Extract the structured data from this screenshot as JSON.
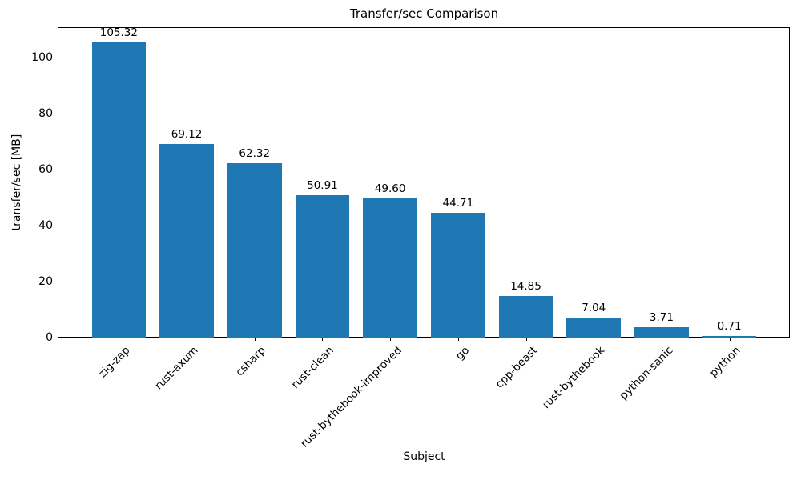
{
  "chart_data": {
    "type": "bar",
    "title": "Transfer/sec Comparison",
    "xlabel": "Subject",
    "ylabel": "transfer/sec [MB]",
    "categories": [
      "zig-zap",
      "rust-axum",
      "csharp",
      "rust-clean",
      "rust-bythebook-improved",
      "go",
      "cpp-beast",
      "rust-bythebook",
      "python-sanic",
      "python"
    ],
    "values": [
      105.32,
      69.12,
      62.32,
      50.91,
      49.6,
      44.71,
      14.85,
      7.04,
      3.71,
      0.71
    ],
    "value_labels": [
      "105.32",
      "69.12",
      "62.32",
      "50.91",
      "49.60",
      "44.71",
      "14.85",
      "7.04",
      "3.71",
      "0.71"
    ],
    "ylim": [
      0,
      110.6
    ],
    "yticks": [
      0,
      20,
      40,
      60,
      80,
      100
    ],
    "bar_color": "#1f77b4",
    "axis_color": "#000000",
    "background_color": "#ffffff",
    "grid": false,
    "legend": "none",
    "x_tick_rotation_deg": 45
  }
}
